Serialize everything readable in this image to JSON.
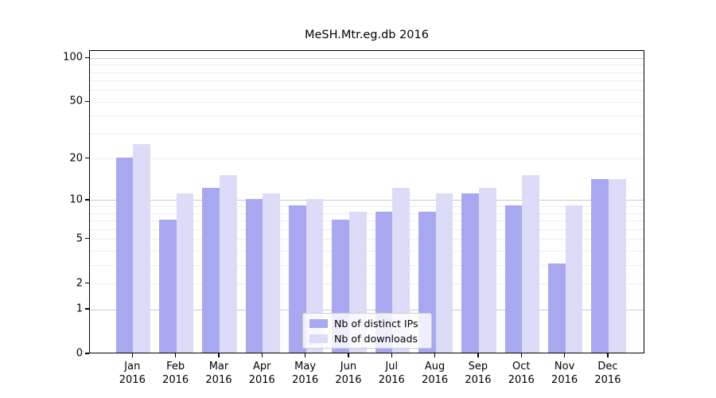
{
  "chart_data": {
    "type": "bar",
    "title": "MeSH.Mtr.eg.db 2016",
    "scale": "log1p",
    "categories": [
      "Jan",
      "Feb",
      "Mar",
      "Apr",
      "May",
      "Jun",
      "Jul",
      "Aug",
      "Sep",
      "Oct",
      "Nov",
      "Dec"
    ],
    "year_label": "2016",
    "series": [
      {
        "name": "Nb of distinct IPs",
        "color": "#a8a8f0",
        "values": [
          20,
          7,
          12,
          10,
          9,
          7,
          8,
          8,
          11,
          9,
          3,
          14
        ]
      },
      {
        "name": "Nb of downloads",
        "color": "#dcdcf8",
        "values": [
          25,
          11,
          15,
          11,
          10,
          8,
          12,
          11,
          12,
          15,
          9,
          14
        ]
      }
    ],
    "y_ticks": [
      "100",
      "50",
      "20",
      "10",
      "5",
      "2",
      "1",
      "0"
    ],
    "y_tick_values": [
      100,
      50,
      20,
      10,
      5,
      2,
      1,
      0
    ],
    "ylim": [
      0,
      112.3
    ],
    "grid": {
      "major_values": [
        1,
        10,
        100
      ],
      "minor_values": [
        2,
        3,
        4,
        5,
        6,
        7,
        8,
        9,
        20,
        30,
        40,
        50,
        60,
        70,
        80,
        90
      ],
      "major_color": "#c9c9c9",
      "minor_color": "#efefef"
    },
    "legend": {
      "position": "lower center",
      "entries": [
        "Nb of distinct IPs",
        "Nb of downloads"
      ]
    },
    "xlabel": "",
    "ylabel": ""
  }
}
